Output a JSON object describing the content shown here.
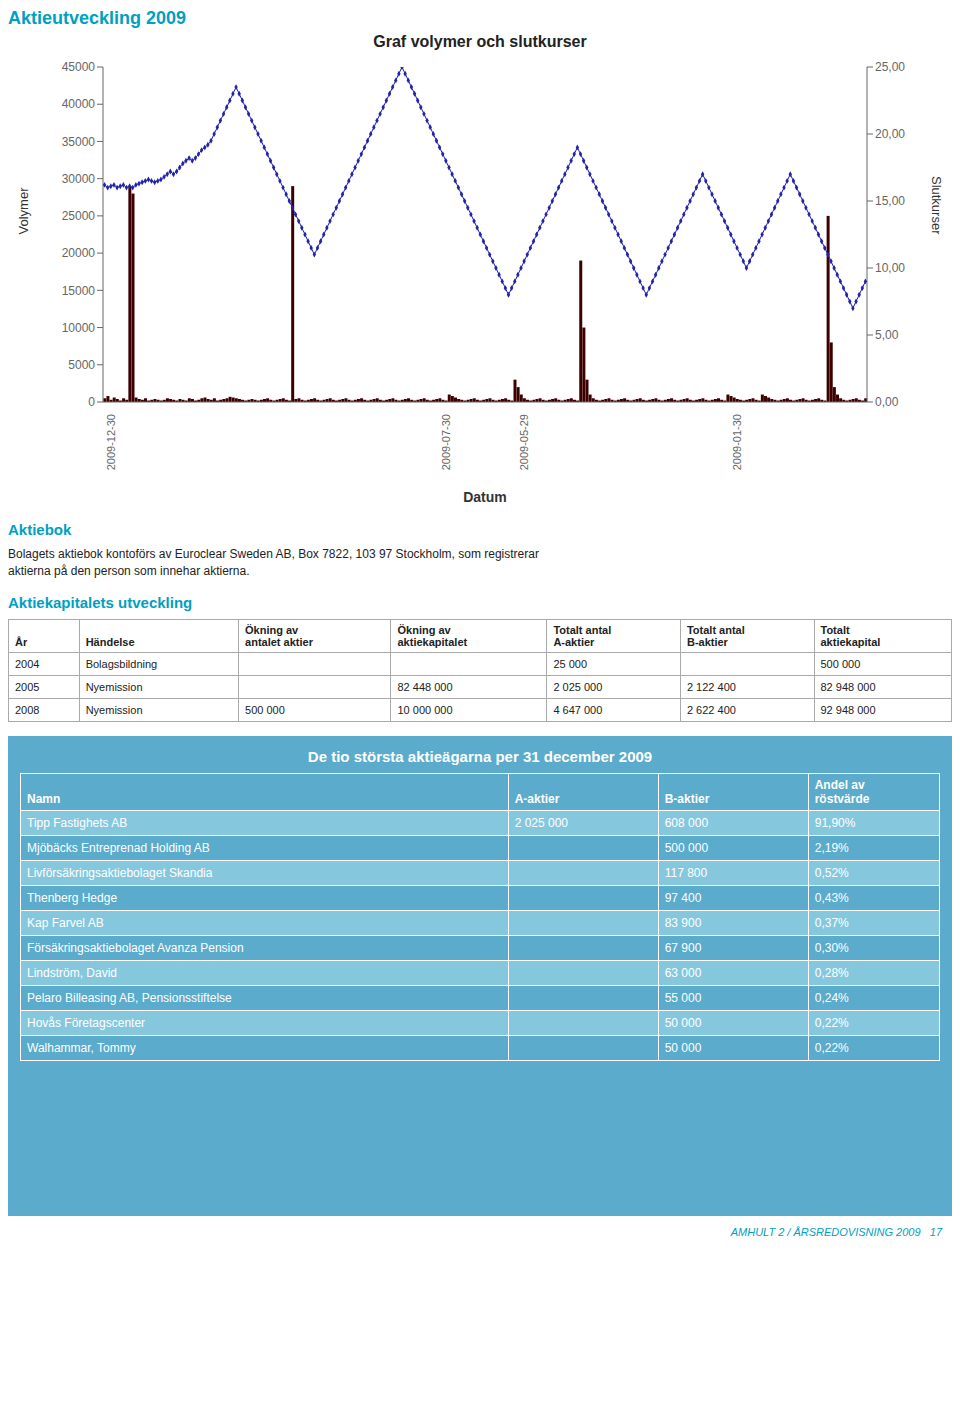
{
  "page_title": "Aktieutveckling 2009",
  "color": "#00a0c0",
  "chart_data": {
    "type": "bar",
    "title": "Graf volymer och slutkurser",
    "x_label": "Datum",
    "y_label": "Volymer",
    "y2_label": "Slutkurser",
    "grid": false,
    "ylim": [
      0,
      45000
    ],
    "yticks": [
      0,
      5000,
      10000,
      15000,
      20000,
      25000,
      30000,
      35000,
      40000,
      45000
    ],
    "y2lim": [
      0,
      25
    ],
    "y2ticks": [
      {
        "value": 0,
        "label": "0,00"
      },
      {
        "value": 5,
        "label": "5,00"
      },
      {
        "value": 10,
        "label": "10,00"
      },
      {
        "value": 15,
        "label": "15,00"
      },
      {
        "value": 20,
        "label": "20,00"
      },
      {
        "value": 25,
        "label": "25,00"
      }
    ],
    "categories": [
      null,
      null,
      "2009-12-30",
      null,
      null,
      null,
      null,
      null,
      null,
      null,
      null,
      null,
      null,
      null,
      null,
      null,
      null,
      null,
      null,
      null,
      null,
      null,
      null,
      null,
      null,
      null,
      null,
      null,
      null,
      null,
      null,
      null,
      null,
      null,
      null,
      null,
      null,
      null,
      null,
      null,
      null,
      null,
      null,
      null,
      null,
      null,
      null,
      null,
      null,
      null,
      null,
      null,
      null,
      null,
      null,
      null,
      null,
      null,
      null,
      null,
      null,
      null,
      null,
      null,
      null,
      null,
      null,
      null,
      null,
      null,
      null,
      null,
      null,
      null,
      null,
      null,
      null,
      null,
      null,
      null,
      null,
      null,
      null,
      null,
      null,
      null,
      null,
      null,
      null,
      null,
      null,
      null,
      null,
      null,
      null,
      null,
      null,
      null,
      null,
      null,
      null,
      null,
      null,
      null,
      null,
      null,
      null,
      null,
      null,
      "2009-07-30",
      null,
      null,
      null,
      null,
      null,
      null,
      null,
      null,
      null,
      null,
      null,
      null,
      null,
      null,
      null,
      null,
      null,
      null,
      null,
      null,
      null,
      null,
      null,
      null,
      "2009-05-29",
      null,
      null,
      null,
      null,
      null,
      null,
      null,
      null,
      null,
      null,
      null,
      null,
      null,
      null,
      null,
      null,
      null,
      null,
      null,
      null,
      null,
      null,
      null,
      null,
      null,
      null,
      null,
      null,
      null,
      null,
      null,
      null,
      null,
      null,
      null,
      null,
      null,
      null,
      null,
      null,
      null,
      null,
      null,
      null,
      null,
      null,
      null,
      null,
      null,
      null,
      null,
      null,
      null,
      null,
      null,
      null,
      null,
      null,
      null,
      null,
      null,
      null,
      null,
      null,
      null,
      null,
      null,
      "2009-01-30",
      null,
      null,
      null,
      null,
      null,
      null,
      null,
      null,
      null,
      null,
      null,
      null,
      null,
      null,
      null,
      null,
      null,
      null,
      null,
      null,
      null,
      null,
      null,
      null,
      null,
      null,
      null,
      null,
      null,
      null,
      null,
      null,
      null,
      null,
      null,
      null,
      null,
      null,
      null,
      null,
      null
    ],
    "series": [
      {
        "type": "bar",
        "color": "#3d0000",
        "values": [
          500,
          800,
          300,
          600,
          400,
          200,
          500,
          300,
          29000,
          28000,
          600,
          400,
          300,
          500,
          200,
          300,
          400,
          300,
          200,
          300,
          500,
          400,
          300,
          200,
          400,
          300,
          200,
          500,
          400,
          200,
          300,
          500,
          600,
          400,
          300,
          500,
          200,
          300,
          400,
          500,
          700,
          600,
          500,
          400,
          300,
          200,
          300,
          400,
          300,
          200,
          300,
          400,
          500,
          300,
          200,
          300,
          400,
          500,
          300,
          200,
          29000,
          400,
          500,
          300,
          200,
          300,
          400,
          500,
          300,
          200,
          300,
          400,
          500,
          300,
          200,
          300,
          400,
          500,
          300,
          200,
          300,
          400,
          500,
          300,
          200,
          300,
          400,
          500,
          300,
          200,
          300,
          400,
          500,
          300,
          200,
          300,
          400,
          500,
          300,
          200,
          300,
          400,
          500,
          300,
          200,
          300,
          400,
          500,
          300,
          200,
          1000,
          800,
          600,
          400,
          300,
          200,
          300,
          400,
          500,
          300,
          200,
          300,
          400,
          500,
          300,
          200,
          300,
          400,
          500,
          300,
          200,
          3000,
          2000,
          1000,
          500,
          300,
          200,
          300,
          400,
          500,
          300,
          200,
          300,
          400,
          500,
          300,
          200,
          300,
          400,
          500,
          300,
          200,
          19000,
          10000,
          3000,
          1000,
          500,
          300,
          200,
          300,
          400,
          500,
          300,
          200,
          300,
          400,
          500,
          300,
          200,
          300,
          400,
          500,
          300,
          200,
          300,
          400,
          500,
          300,
          200,
          300,
          400,
          500,
          300,
          200,
          300,
          400,
          500,
          300,
          200,
          300,
          400,
          500,
          300,
          200,
          300,
          400,
          500,
          300,
          200,
          1000,
          800,
          600,
          400,
          300,
          200,
          300,
          400,
          500,
          300,
          200,
          1000,
          800,
          600,
          400,
          300,
          200,
          300,
          400,
          500,
          300,
          200,
          300,
          400,
          500,
          300,
          200,
          300,
          400,
          500,
          300,
          200,
          25000,
          8000,
          2000,
          1000,
          500,
          300,
          200,
          300,
          400,
          500,
          300,
          200,
          500
        ]
      },
      {
        "type": "line",
        "axis": "y2",
        "color": "#2222aa",
        "marker": "diamond",
        "values": [
          16.2,
          16.0,
          16.1,
          16.2,
          16.0,
          16.1,
          16.2,
          16.0,
          16.1,
          16.0,
          16.2,
          16.3,
          16.4,
          16.5,
          16.6,
          16.5,
          16.4,
          16.5,
          16.6,
          16.8,
          17.0,
          17.2,
          17.0,
          17.2,
          17.5,
          17.8,
          18.0,
          18.2,
          18.0,
          18.2,
          18.5,
          18.8,
          19.0,
          19.2,
          19.5,
          20.0,
          20.5,
          21.0,
          21.5,
          22.0,
          22.5,
          23.0,
          23.5,
          23.0,
          22.5,
          22.0,
          21.5,
          21.0,
          20.5,
          20.0,
          19.5,
          19.0,
          18.5,
          18.0,
          17.5,
          17.0,
          16.5,
          16.0,
          15.5,
          15.0,
          14.5,
          14.0,
          13.5,
          13.0,
          12.5,
          12.0,
          11.5,
          11.0,
          11.5,
          12.0,
          12.5,
          13.0,
          13.5,
          14.0,
          14.5,
          15.0,
          15.5,
          16.0,
          16.5,
          17.0,
          17.5,
          18.0,
          18.5,
          19.0,
          19.5,
          20.0,
          20.5,
          21.0,
          21.5,
          22.0,
          22.5,
          23.0,
          23.5,
          24.0,
          24.5,
          25.0,
          24.5,
          24.0,
          23.5,
          23.0,
          22.5,
          22.0,
          21.5,
          21.0,
          20.5,
          20.0,
          19.5,
          19.0,
          18.5,
          18.0,
          17.5,
          17.0,
          16.5,
          16.0,
          15.5,
          15.0,
          14.5,
          14.0,
          13.5,
          13.0,
          12.5,
          12.0,
          11.5,
          11.0,
          10.5,
          10.0,
          9.5,
          9.0,
          8.5,
          8.0,
          8.5,
          9.0,
          9.5,
          10.0,
          10.5,
          11.0,
          11.5,
          12.0,
          12.5,
          13.0,
          13.5,
          14.0,
          14.5,
          15.0,
          15.5,
          16.0,
          16.5,
          17.0,
          17.5,
          18.0,
          18.5,
          19.0,
          18.5,
          18.0,
          17.5,
          17.0,
          16.5,
          16.0,
          15.5,
          15.0,
          14.5,
          14.0,
          13.5,
          13.0,
          12.5,
          12.0,
          11.5,
          11.0,
          10.5,
          10.0,
          9.5,
          9.0,
          8.5,
          8.0,
          8.5,
          9.0,
          9.5,
          10.0,
          10.5,
          11.0,
          11.5,
          12.0,
          12.5,
          13.0,
          13.5,
          14.0,
          14.5,
          15.0,
          15.5,
          16.0,
          16.5,
          17.0,
          16.5,
          16.0,
          15.5,
          15.0,
          14.5,
          14.0,
          13.5,
          13.0,
          12.5,
          12.0,
          11.5,
          11.0,
          10.5,
          10.0,
          10.5,
          11.0,
          11.5,
          12.0,
          12.5,
          13.0,
          13.5,
          14.0,
          14.5,
          15.0,
          15.5,
          16.0,
          16.5,
          17.0,
          16.5,
          16.0,
          15.5,
          15.0,
          14.5,
          14.0,
          13.5,
          13.0,
          12.5,
          12.0,
          11.5,
          11.0,
          10.5,
          10.0,
          9.5,
          9.0,
          8.5,
          8.0,
          7.5,
          7.0,
          7.5,
          8.0,
          8.5,
          9.0
        ]
      }
    ]
  },
  "sections": [
    {
      "title": "Aktiebok",
      "text": "Bolagets aktiebok kontoförs av Euroclear Sweden AB, Box 7822, 103 97  Stockholm, som registrerar\naktierna på den person som innehar aktierna."
    },
    {
      "title": "Aktiekapitalets utveckling",
      "headers": [
        "År",
        "Händelse",
        "Ökning av\nantalet aktier",
        "Ökning av\naktiekapitalet",
        "Totalt antal\nA-aktier",
        "Totalt antal\nB-aktier",
        "Totalt\naktiekapital"
      ],
      "rows": [
        [
          "2004",
          "Bolagsbildning",
          "",
          "",
          "25 000",
          "",
          "500 000"
        ],
        [
          "2005",
          "Nyemission",
          "",
          "82 448 000",
          "2 025 000",
          "2 122 400",
          "82 948 000"
        ],
        [
          "2008",
          "Nyemission",
          "500 000",
          "10 000 000",
          "4 647 000",
          "2 622 400",
          "92 948 000"
        ]
      ]
    },
    {
      "title": "De tio största aktieägarna per 31 december 2009",
      "color": "#5aabcc",
      "colors": [
        "#85c8de",
        "#5aabcc"
      ],
      "headers": [
        "Namn",
        "A-aktier",
        "B-aktier",
        "Andel av\nröstvärde"
      ],
      "rows": [
        [
          "Tipp Fastighets AB",
          "2 025 000",
          "608 000",
          "91,90%"
        ],
        [
          "Mjöbäcks Entreprenad Holding AB",
          "",
          "500 000",
          "2,19%"
        ],
        [
          "Livförsäkringsaktiebolaget Skandia",
          "",
          "117 800",
          "0,52%"
        ],
        [
          "Thenberg Hedge",
          "",
          "97 400",
          "0,43%"
        ],
        [
          "Kap Farvel AB",
          "",
          "83 900",
          "0,37%"
        ],
        [
          "Försäkringsaktiebolaget Avanza Pension",
          "",
          "67 900",
          "0,30%"
        ],
        [
          "Lindström, David",
          "",
          "63 000",
          "0,28%"
        ],
        [
          "Pelaro Billeasing AB, Pensionsstiftelse",
          "",
          "55 000",
          "0,24%"
        ],
        [
          "Hovås Företagscenter",
          "",
          "50 000",
          "0,22%"
        ],
        [
          "Walhammar, Tommy",
          "",
          "50 000",
          "0,22%"
        ]
      ]
    }
  ],
  "footer": "AMHULT 2 / ÅRSREDOVISNING 2009   17"
}
